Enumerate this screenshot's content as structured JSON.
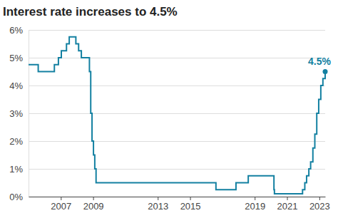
{
  "chart_data": {
    "type": "line",
    "title": "Interest rate increases to 4.5%",
    "x": [
      2005.0,
      2005.6,
      2006.6,
      2006.85,
      2007.03,
      2007.35,
      2007.52,
      2007.93,
      2008.1,
      2008.27,
      2008.77,
      2008.85,
      2008.93,
      2009.02,
      2009.1,
      2009.18,
      2016.6,
      2017.84,
      2018.6,
      2020.19,
      2020.22,
      2021.96,
      2022.1,
      2022.21,
      2022.35,
      2022.46,
      2022.6,
      2022.72,
      2022.84,
      2022.96,
      2023.09,
      2023.22,
      2023.36
    ],
    "values": [
      4.75,
      4.5,
      4.75,
      5.0,
      5.25,
      5.5,
      5.75,
      5.5,
      5.25,
      5.0,
      4.5,
      3.0,
      2.0,
      1.5,
      1.0,
      0.5,
      0.25,
      0.5,
      0.75,
      0.25,
      0.1,
      0.25,
      0.5,
      0.75,
      1.0,
      1.25,
      1.75,
      2.25,
      3.0,
      3.5,
      4.0,
      4.25,
      4.5
    ],
    "color": "#1380a1",
    "line_style": "step",
    "xlim": [
      2005.0,
      2023.36
    ],
    "xticks": [
      2007,
      2009,
      2013,
      2015,
      2019,
      2021,
      2023
    ],
    "ylim": [
      0,
      6
    ],
    "yticks": [
      {
        "value": 0,
        "label": "0%"
      },
      {
        "value": 1,
        "label": "1%"
      },
      {
        "value": 2,
        "label": "2%"
      },
      {
        "value": 3,
        "label": "3%"
      },
      {
        "value": 4,
        "label": "4%"
      },
      {
        "value": 5,
        "label": "5%"
      },
      {
        "value": 6,
        "label": "6%"
      }
    ],
    "grid": true,
    "annotations": [
      {
        "text": "4.5%",
        "x": 2023.36,
        "y": 4.5
      }
    ]
  }
}
